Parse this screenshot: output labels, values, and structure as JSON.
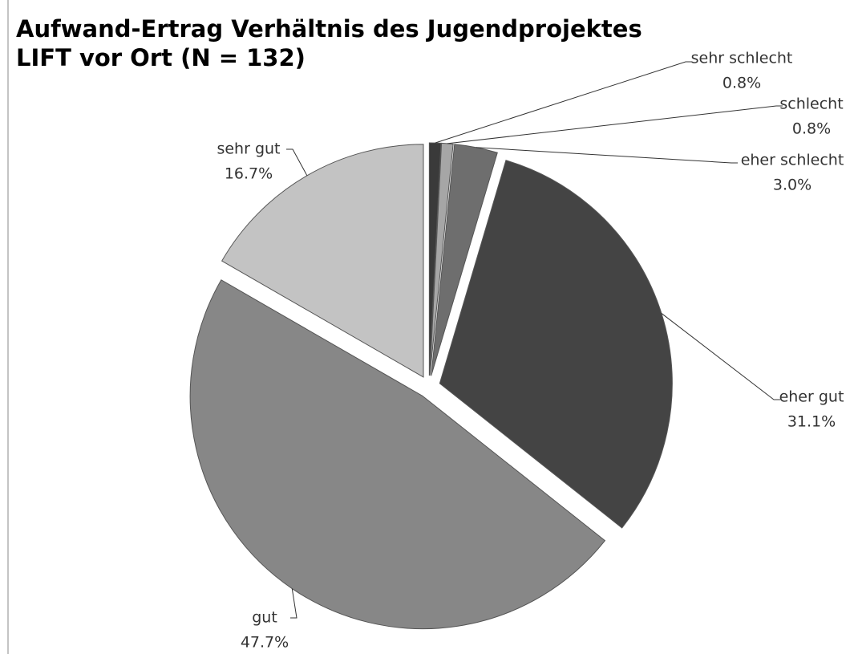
{
  "chart_data": {
    "type": "pie",
    "title": "Aufwand-Ertrag Verhältnis des Jugendprojektes LIFT vor Ort (N = 132)",
    "categories": [
      "sehr schlecht",
      "schlecht",
      "eher schlecht",
      "eher gut",
      "gut",
      "sehr gut"
    ],
    "values": [
      0.8,
      0.8,
      3.0,
      31.1,
      47.7,
      16.7
    ],
    "value_labels": [
      "0.8%",
      "0.8%",
      "3.0%",
      "31.1%",
      "47.7%",
      "16.7%"
    ],
    "colors": [
      "#3a3a3a",
      "#a6a6a6",
      "#6e6e6e",
      "#444444",
      "#878787",
      "#c3c3c3"
    ]
  }
}
